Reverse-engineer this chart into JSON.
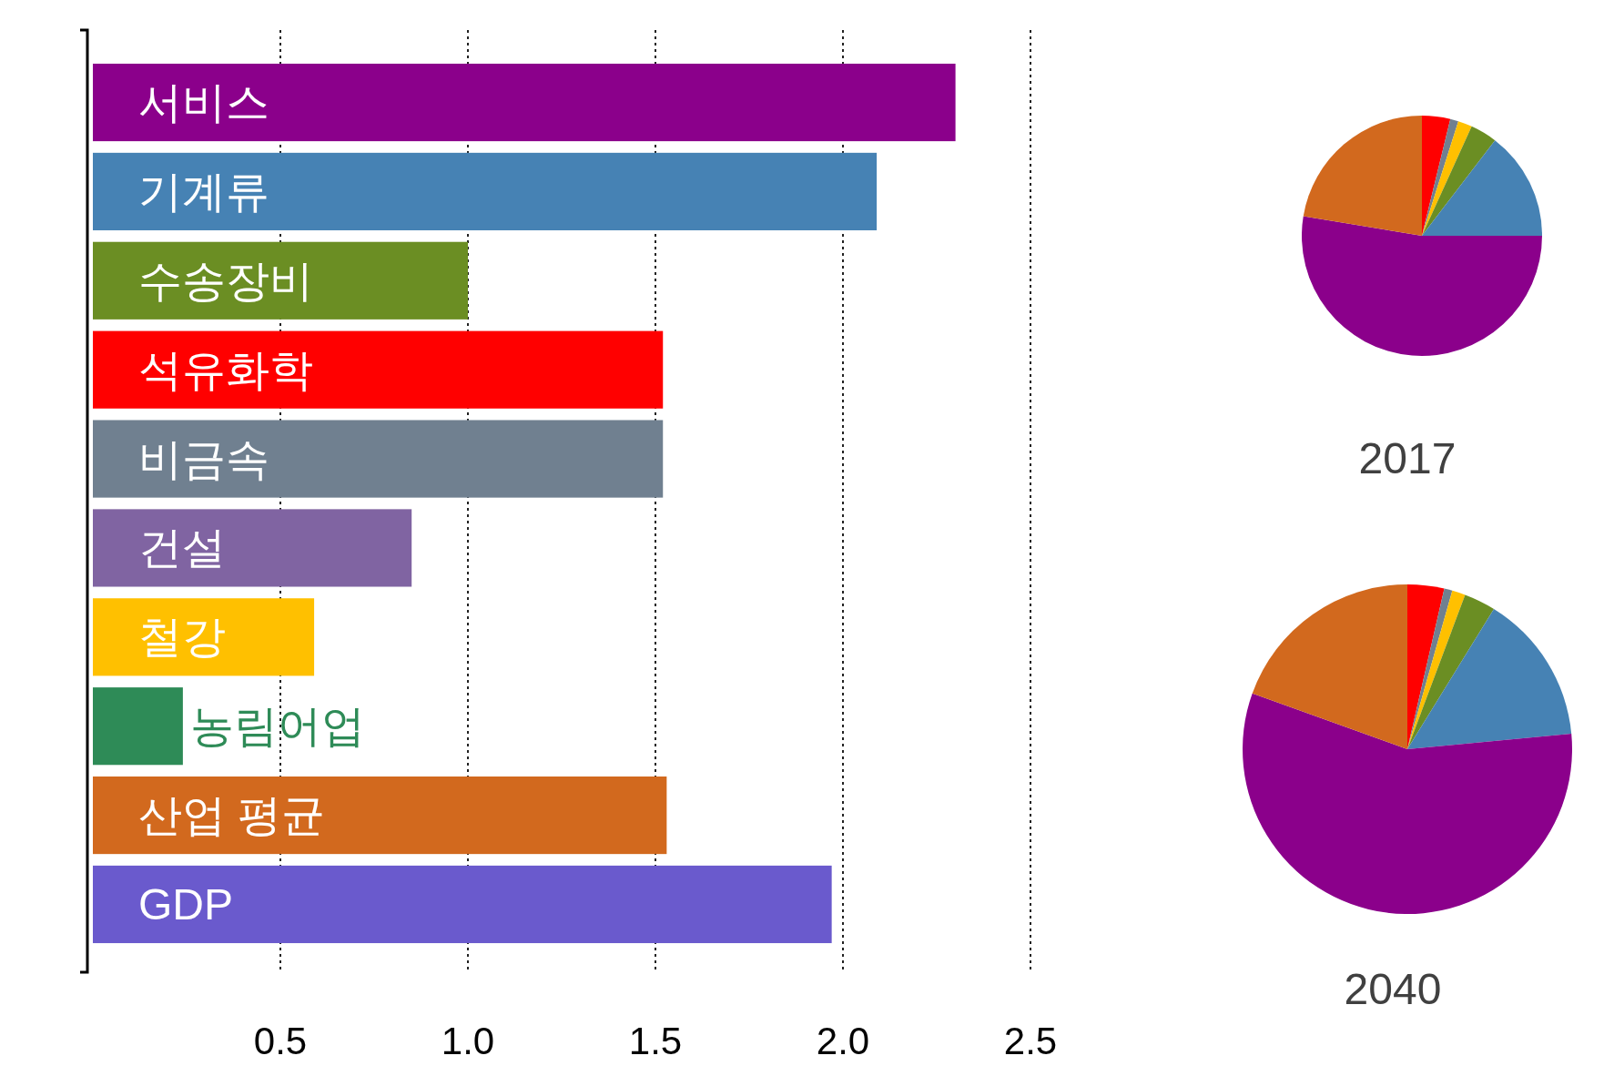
{
  "chart_data": [
    {
      "type": "bar",
      "orientation": "horizontal",
      "categories": [
        "서비스",
        "기계류",
        "수송장비",
        "석유화학",
        "비금속",
        "건설",
        "철강",
        "농림어업",
        "산업 평균",
        "GDP"
      ],
      "values": [
        2.3,
        2.09,
        1.0,
        1.52,
        1.52,
        0.85,
        0.59,
        0.24,
        1.53,
        1.97
      ],
      "colors": [
        "#8b008b",
        "#4682b4",
        "#6b8e23",
        "#ff0000",
        "#708090",
        "#8064a2",
        "#ffc000",
        "#2e8b57",
        "#d2691e",
        "#6a5acd"
      ],
      "xlim": [
        0,
        2.5
      ],
      "xticks": [
        0.5,
        {
          "value": 1,
          "label": "1.0"
        },
        1.5,
        {
          "value": 2,
          "label": "2.0"
        },
        2.5
      ],
      "grid": "x"
    },
    {
      "type": "pie",
      "title": "2017",
      "categories": [
        null,
        null,
        null,
        null,
        null,
        null,
        null
      ],
      "values": [
        3.8,
        1.1,
        1.9,
        3.6,
        14.6,
        52.6,
        22.4
      ],
      "colors": [
        "#ff0000",
        "#708090",
        "#ffc000",
        "#6b8e23",
        "#4682b4",
        "#8b008b",
        "#d2691e"
      ]
    },
    {
      "type": "pie",
      "title": "2040",
      "categories": [
        null,
        null,
        null,
        null,
        null,
        null,
        null
      ],
      "values": [
        3.6,
        0.8,
        1.3,
        3.1,
        14.7,
        57.0,
        19.5
      ],
      "colors": [
        "#ff0000",
        "#708090",
        "#ffc000",
        "#6b8e23",
        "#4682b4",
        "#8b008b",
        "#d2691e"
      ]
    }
  ]
}
